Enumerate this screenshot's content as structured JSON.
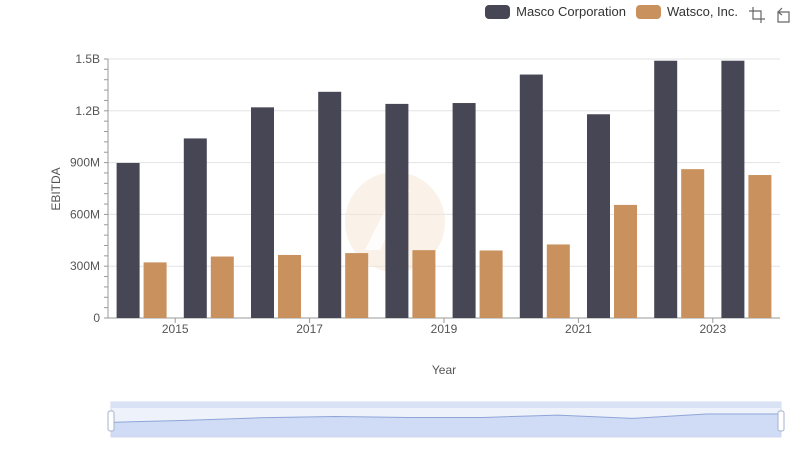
{
  "legend": {
    "items": [
      {
        "label": "Masco Corporation",
        "color": "#474654"
      },
      {
        "label": "Watsco, Inc.",
        "color": "#c8915e"
      }
    ]
  },
  "toolbar": {
    "icons": [
      "zoom-icon",
      "restore-icon"
    ]
  },
  "chart_data": {
    "type": "bar",
    "categories": [
      "2014",
      "2015",
      "2016",
      "2017",
      "2018",
      "2019",
      "2020",
      "2021",
      "2022",
      "2023"
    ],
    "x_tick_labels": [
      "2015",
      "2017",
      "2019",
      "2021",
      "2023"
    ],
    "series": [
      {
        "name": "Masco Corporation",
        "color": "#474654",
        "values": [
          898000000,
          1040000000,
          1220000000,
          1310000000,
          1240000000,
          1245000000,
          1410000000,
          1180000000,
          1490000000,
          1490000000
        ]
      },
      {
        "name": "Watsco, Inc.",
        "color": "#c8915e",
        "values": [
          322000000,
          356000000,
          365000000,
          376000000,
          393000000,
          391000000,
          426000000,
          655000000,
          862000000,
          828000000
        ]
      }
    ],
    "xlabel": "Year",
    "ylabel": "EBITDA",
    "ylim": [
      0,
      1500000000
    ],
    "y_ticks": [
      {
        "value": 0,
        "label": "0"
      },
      {
        "value": 300000000,
        "label": "300M"
      },
      {
        "value": 600000000,
        "label": "600M"
      },
      {
        "value": 900000000,
        "label": "900M"
      },
      {
        "value": 1200000000,
        "label": "1.2B"
      },
      {
        "value": 1500000000,
        "label": "1.5B"
      }
    ],
    "grid": true,
    "legend_position": "top-right",
    "overview_zoom": true
  }
}
